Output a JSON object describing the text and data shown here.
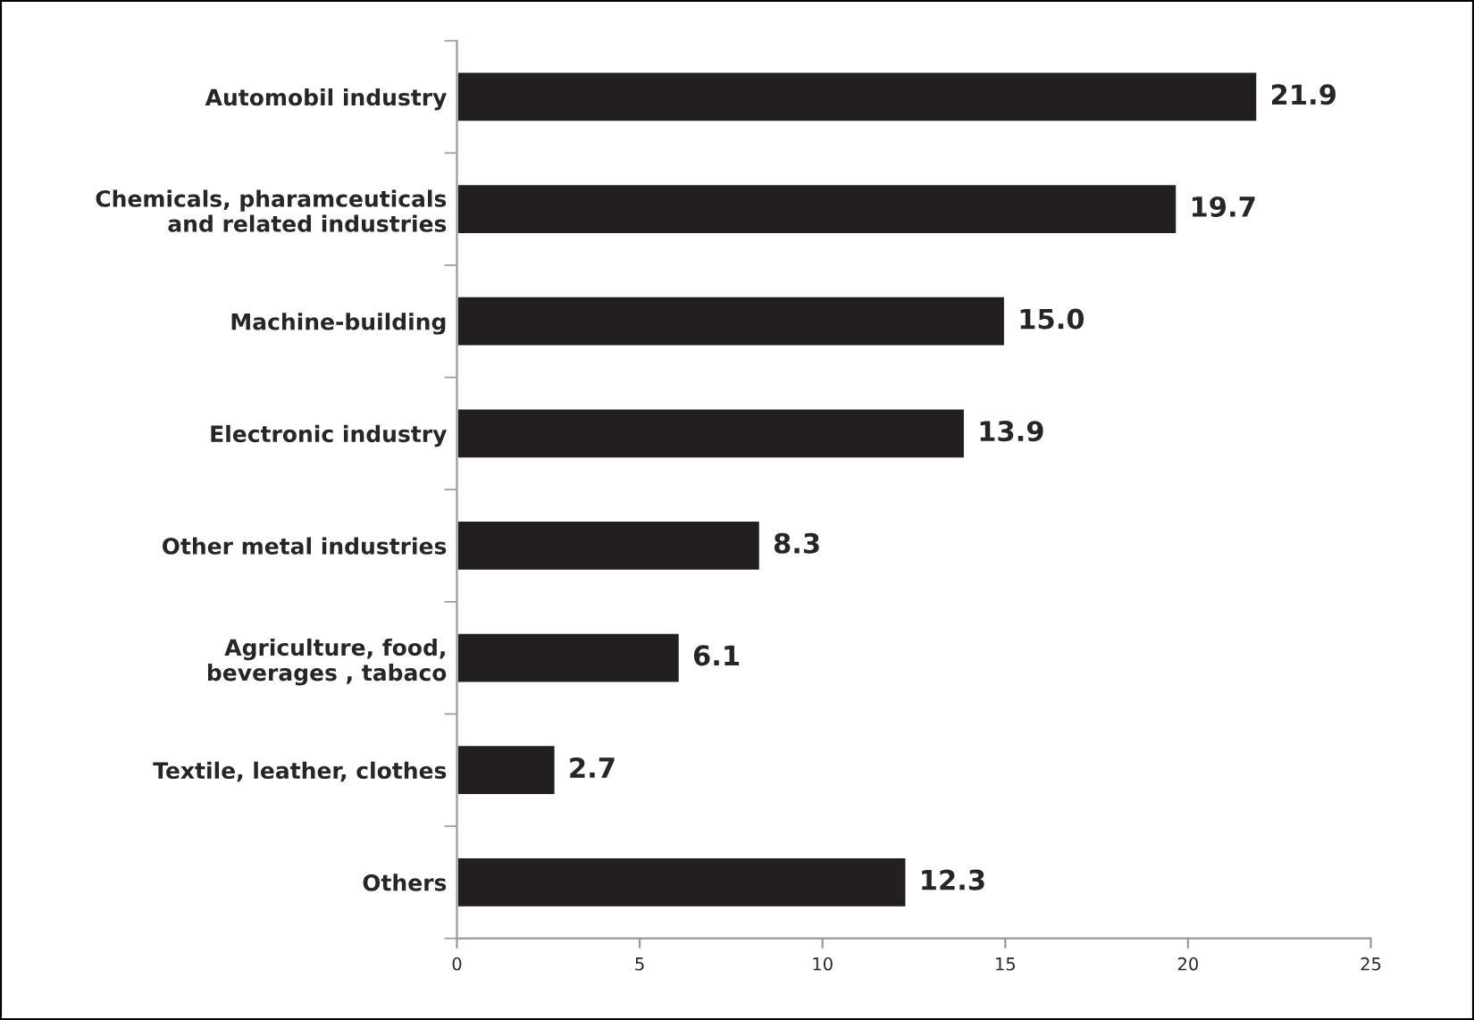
{
  "chart_data": {
    "type": "bar",
    "orientation": "horizontal",
    "categories": [
      "Automobil industry",
      "Chemicals, pharamceuticals\nand related industries",
      "Machine-building",
      "Electronic industry",
      "Other metal industries",
      "Agriculture, food,\nbeverages , tabaco",
      "Textile, leather, clothes",
      "Others"
    ],
    "values": [
      21.9,
      19.7,
      15.0,
      13.9,
      8.3,
      6.1,
      2.7,
      12.3
    ],
    "value_labels": [
      "21.9",
      "19.7",
      "15.0",
      "13.9",
      "8.3",
      "6.1",
      "2.7",
      "12.3"
    ],
    "color": "#231f20",
    "xlim": [
      0,
      25
    ],
    "xticks": [
      0,
      5,
      10,
      15,
      20,
      25
    ],
    "grid": false,
    "legend": false
  }
}
